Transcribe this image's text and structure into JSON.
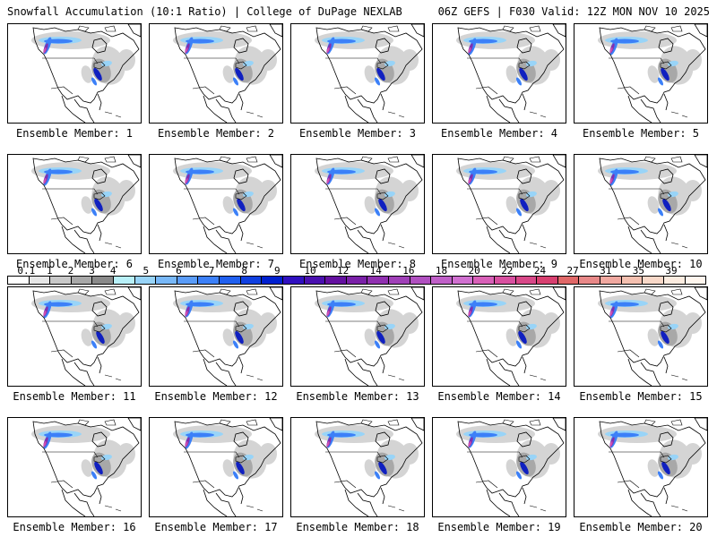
{
  "header": {
    "left_title": "Snowfall Accumulation (10:1 Ratio) | College of DuPage NEXLAB",
    "right_title": "06Z GEFS | F030 Valid: 12Z MON NOV 10 2025"
  },
  "panel_label_prefix": "Ensemble Member:",
  "members": [
    {
      "label": "Ensemble Member: 1"
    },
    {
      "label": "Ensemble Member: 2"
    },
    {
      "label": "Ensemble Member: 3"
    },
    {
      "label": "Ensemble Member: 4"
    },
    {
      "label": "Ensemble Member: 5"
    },
    {
      "label": "Ensemble Member: 6"
    },
    {
      "label": "Ensemble Member: 7"
    },
    {
      "label": "Ensemble Member: 8"
    },
    {
      "label": "Ensemble Member: 9"
    },
    {
      "label": "Ensemble Member: 10"
    },
    {
      "label": "Ensemble Member: 11"
    },
    {
      "label": "Ensemble Member: 12"
    },
    {
      "label": "Ensemble Member: 13"
    },
    {
      "label": "Ensemble Member: 14"
    },
    {
      "label": "Ensemble Member: 15"
    },
    {
      "label": "Ensemble Member: 16"
    },
    {
      "label": "Ensemble Member: 17"
    },
    {
      "label": "Ensemble Member: 18"
    },
    {
      "label": "Ensemble Member: 19"
    },
    {
      "label": "Ensemble Member: 20"
    }
  ],
  "colorbar": {
    "labels": [
      "0.1",
      "1",
      "2",
      "3",
      "4",
      "5",
      "6",
      "7",
      "8",
      "9",
      "10",
      "12",
      "14",
      "16",
      "18",
      "20",
      "22",
      "24",
      "27",
      "31",
      "35",
      "39"
    ],
    "colors": [
      "#ffffff",
      "#e6e6e6",
      "#c8c8c8",
      "#a8a8a8",
      "#8a8a8a",
      "#b8f0f8",
      "#98d4f8",
      "#78b8f8",
      "#5a9cf8",
      "#3c80f8",
      "#2060f0",
      "#1040e0",
      "#0020d0",
      "#3010c0",
      "#4a10b0",
      "#6410a0",
      "#7a20a8",
      "#9030b0",
      "#a040b8",
      "#b050c0",
      "#c060c8",
      "#d070d0",
      "#d860b8",
      "#d850a0",
      "#d84888",
      "#d84070",
      "#e06868",
      "#e88888",
      "#f0a8a0",
      "#f4c0b0",
      "#f8d8c8",
      "#fcece0",
      "#fff6ee"
    ]
  },
  "map_colors": {
    "land": "#ffffff",
    "outline": "#000000",
    "snow_light": "#d4d4d4",
    "snow_med": "#a8a8a8",
    "snow_cyan": "#98d4f8",
    "snow_blue": "#3c80f8",
    "snow_navy": "#1020c0",
    "snow_purple": "#8030b0",
    "snow_magenta": "#d050b0"
  }
}
